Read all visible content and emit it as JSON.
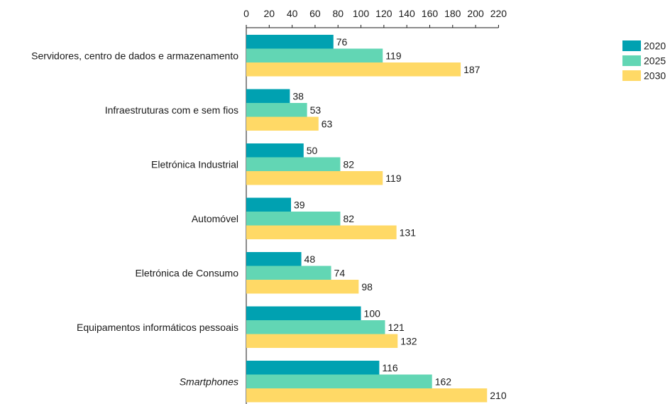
{
  "chart_data": {
    "type": "bar",
    "orientation": "horizontal",
    "title": "",
    "xlabel": "",
    "ylabel": "",
    "xlim": [
      0,
      220
    ],
    "x_ticks": [
      0,
      20,
      40,
      60,
      80,
      100,
      120,
      140,
      160,
      180,
      200,
      220
    ],
    "x_axis_position": "top",
    "grid": false,
    "legend_position": "top-right",
    "categories": [
      "Servidores, centro de dados e armazenamento",
      "Infraestruturas com e sem fios",
      "Eletrónica Industrial",
      "Automóvel",
      "Eletrónica de Consumo",
      "Equipamentos informáticos pessoais",
      "Smartphones"
    ],
    "italic_categories": [
      "Smartphones"
    ],
    "series": [
      {
        "name": "2020",
        "color": "#00A1B1",
        "values": [
          76,
          38,
          50,
          39,
          48,
          100,
          116
        ]
      },
      {
        "name": "2025",
        "color": "#62D6B4",
        "values": [
          119,
          53,
          82,
          82,
          74,
          121,
          162
        ]
      },
      {
        "name": "2030",
        "color": "#FFD966",
        "values": [
          187,
          63,
          119,
          131,
          98,
          132,
          210
        ]
      }
    ]
  }
}
